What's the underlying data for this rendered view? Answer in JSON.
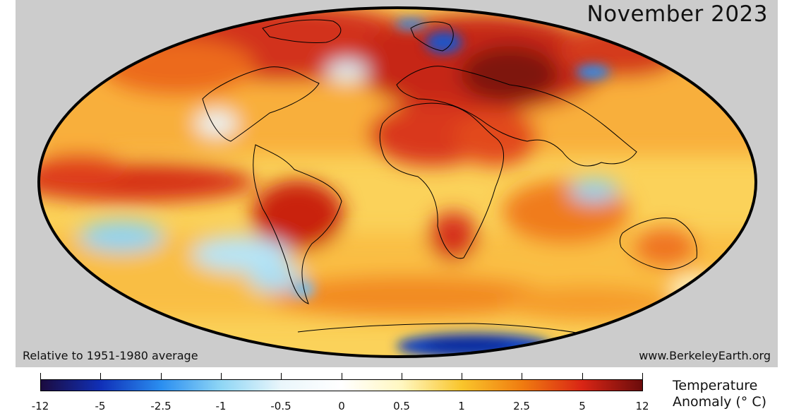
{
  "map": {
    "title": "November 2023",
    "baseline_note": "Relative to 1951-1980 average",
    "source": "www.BerkeleyEarth.org",
    "projection": "Mollweide",
    "background_color": "#cccccc"
  },
  "legend": {
    "title_line1": "Temperature",
    "title_line2": "Anomaly (° C)",
    "tick_labels": [
      "-12",
      "-5",
      "-2.5",
      "-1",
      "-0.5",
      "0",
      "0.5",
      "1",
      "2.5",
      "5",
      "12"
    ],
    "colors": [
      "#1b0b3f",
      "#1030b8",
      "#2a8ef0",
      "#8fd6f5",
      "#eaf6fb",
      "#ffffff",
      "#fff7c0",
      "#f9c52b",
      "#f07c10",
      "#d92515",
      "#6b0c0c"
    ]
  }
}
